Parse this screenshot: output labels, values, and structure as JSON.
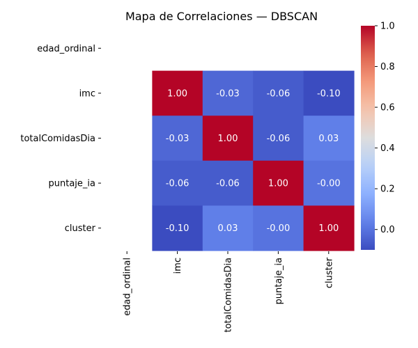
{
  "chart_data": {
    "type": "heatmap",
    "title": "Mapa de Correlaciones — DBSCAN",
    "xlabel": "",
    "ylabel": "",
    "row_labels": [
      "edad_ordinal",
      "imc",
      "totalComidasDia",
      "puntaje_ia",
      "cluster"
    ],
    "col_labels": [
      "edad_ordinal",
      "imc",
      "totalComidasDia",
      "puntaje_ia",
      "cluster"
    ],
    "values": [
      [
        null,
        null,
        null,
        null,
        null
      ],
      [
        null,
        1.0,
        -0.03,
        -0.06,
        -0.1
      ],
      [
        null,
        -0.03,
        1.0,
        -0.06,
        0.03
      ],
      [
        null,
        -0.06,
        -0.06,
        1.0,
        -0.0
      ],
      [
        null,
        -0.1,
        0.03,
        -0.0,
        1.0
      ]
    ],
    "cell_text": [
      [
        "",
        "",
        "",
        "",
        ""
      ],
      [
        "",
        "1.00",
        "-0.03",
        "-0.06",
        "-0.10"
      ],
      [
        "",
        "-0.03",
        "1.00",
        "-0.06",
        "0.03"
      ],
      [
        "",
        "-0.06",
        "-0.06",
        "1.00",
        "-0.00"
      ],
      [
        "",
        "-0.10",
        "0.03",
        "-0.00",
        "1.00"
      ]
    ],
    "colormap": "coolwarm",
    "color_range": [
      -0.1,
      1.0
    ],
    "colorbar_ticks": [
      "0.0",
      "0.2",
      "0.4",
      "0.6",
      "0.8",
      "1.0"
    ],
    "colorbar_tick_values": [
      0.0,
      0.2,
      0.4,
      0.6,
      0.8,
      1.0
    ],
    "legend": "colorbar-right",
    "grid": false
  }
}
